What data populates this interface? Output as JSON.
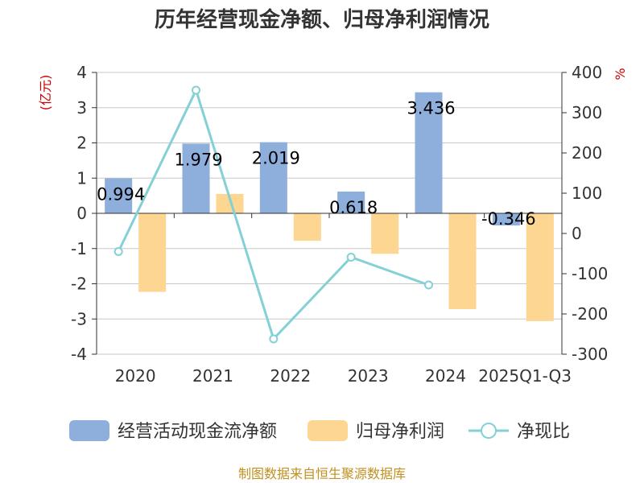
{
  "colors": {
    "bar_primary": "#8eaedb",
    "bar_secondary": "#fdd691",
    "line": "#83d0d5",
    "grid": "#c8c8c8",
    "unit": "#cc0000",
    "source": "#c09020"
  },
  "chart_data": {
    "type": "bar",
    "title": "历年经营现金净额、归母净利润情况",
    "categories": [
      "2020",
      "2021",
      "2022",
      "2023",
      "2024",
      "2025Q1-Q3"
    ],
    "left_axis": {
      "unit": "(亿元)",
      "ylim": [
        -4,
        4
      ],
      "ticks": [
        "-4",
        "-3",
        "-2",
        "-1",
        "0",
        "1",
        "2",
        "3",
        "4"
      ]
    },
    "right_axis": {
      "unit": "%",
      "ylim": [
        -300,
        400
      ],
      "ticks": [
        "-300",
        "-200",
        "-100",
        "0",
        "100",
        "200",
        "300",
        "400"
      ]
    },
    "grid": true,
    "legend_position": "bottom",
    "series": [
      {
        "name": "经营活动现金流净额",
        "type": "bar",
        "axis": "left",
        "values": [
          0.994,
          1.979,
          2.019,
          0.618,
          3.436,
          -0.346
        ],
        "labels": [
          "0.994",
          "1.979",
          "2.019",
          "0.618",
          "3.436",
          "-0.346"
        ]
      },
      {
        "name": "归母净利润",
        "type": "bar",
        "axis": "left",
        "values": [
          -2.23,
          0.55,
          -0.78,
          -1.15,
          -2.72,
          -3.06
        ]
      },
      {
        "name": "净现比",
        "type": "line",
        "axis": "right",
        "values": [
          -45,
          356,
          -262,
          -59,
          -128,
          null
        ]
      }
    ],
    "source_text": "制图数据来自恒生聚源数据库"
  }
}
